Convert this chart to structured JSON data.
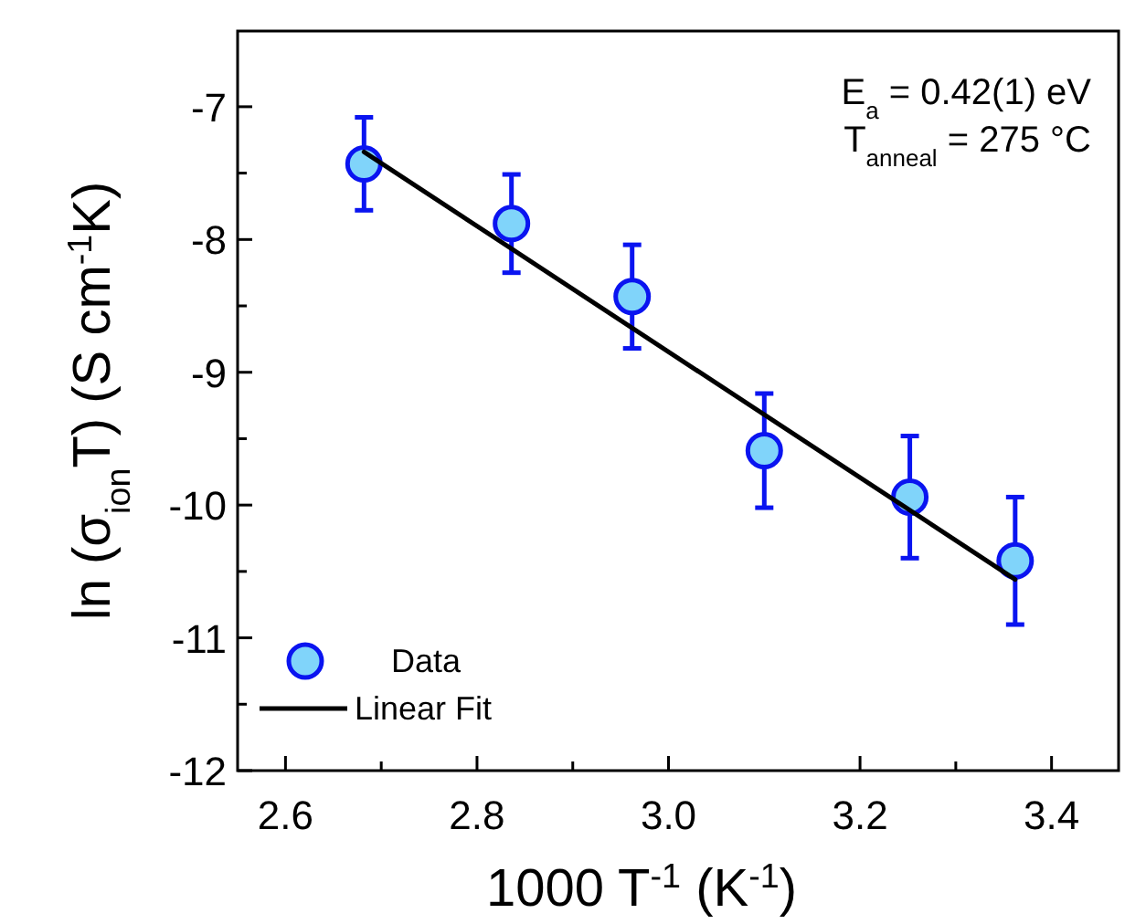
{
  "chart_data": {
    "type": "scatter",
    "xlabel": "1000 T$^{-1}$ (K$^{-1}$)",
    "ylabel": "ln (σ$_{ion}$T) (S cm$^{-1}$K)",
    "xlim": [
      2.55,
      3.47
    ],
    "ylim": [
      -12,
      -6.43
    ],
    "xticks": [
      2.6,
      {
        "value": 2.7,
        "label": null
      },
      2.8,
      {
        "value": 2.9,
        "label": null
      },
      "3.0",
      3.2,
      {
        "value": 3.3,
        "label": null
      },
      3.4
    ],
    "yticks": [
      -12,
      {
        "value": -11.5,
        "label": null
      },
      -11,
      {
        "value": -10.5,
        "label": null
      },
      -10,
      {
        "value": -9.5,
        "label": null
      },
      -9,
      {
        "value": -8.5,
        "label": null
      },
      -8,
      {
        "value": -7.5,
        "label": null
      },
      -7
    ],
    "series": [
      {
        "name": "Data",
        "color": "#80d4fa",
        "x": [
          2.682,
          2.836,
          2.962,
          3.1,
          3.252,
          3.362
        ],
        "values": [
          -7.43,
          -7.88,
          -8.43,
          -9.59,
          -9.94,
          -10.42
        ],
        "errors": [
          0.35,
          0.37,
          0.39,
          0.43,
          0.46,
          0.48
        ],
        "marker": "circle"
      },
      {
        "name": "Linear Fit",
        "type": "line",
        "color": "#000000",
        "x": [
          2.682,
          3.362
        ],
        "values": [
          -7.34,
          -10.56
        ],
        "line_style": "solid"
      }
    ],
    "annotations": [
      "E$_{a}$ = 0.42(1) eV",
      "T$_{anneal}$ = 275 °C"
    ],
    "legend": "bottom left",
    "grid": false
  }
}
